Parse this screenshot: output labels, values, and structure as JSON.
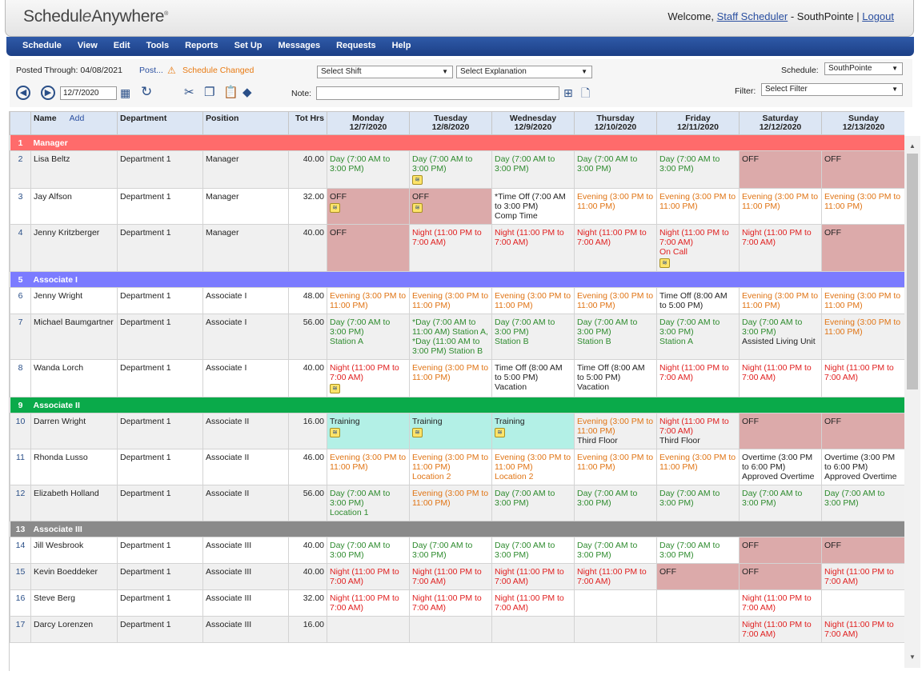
{
  "header": {
    "logo_pre": "Schedul",
    "logo_e": "e",
    "logo_post": "Anywhere",
    "logo_mark": "®",
    "welcome_text": "Welcome,",
    "user_name": "Staff Scheduler",
    "location_text": "- SouthPointe |",
    "logout": "Logout"
  },
  "menu": [
    "Schedule",
    "View",
    "Edit",
    "Tools",
    "Reports",
    "Set Up",
    "Messages",
    "Requests",
    "Help"
  ],
  "toolbar": {
    "posted_through": "Posted Through: 04/08/2021",
    "post_link": "Post...",
    "schedule_changed": "Schedule Changed",
    "select_shift": "Select Shift",
    "select_explanation": "Select Explanation",
    "schedule_label": "Schedule:",
    "schedule_value": "SouthPointe",
    "filter_label": "Filter:",
    "filter_value": "Select Filter",
    "date_value": "12/7/2020",
    "note_label": "Note:",
    "note_value": ""
  },
  "columns": {
    "name": "Name",
    "add": "Add",
    "department": "Department",
    "position": "Position",
    "tot_hrs": "Tot Hrs",
    "days": [
      {
        "day": "Monday",
        "date": "12/7/2020"
      },
      {
        "day": "Tuesday",
        "date": "12/8/2020"
      },
      {
        "day": "Wednesday",
        "date": "12/9/2020"
      },
      {
        "day": "Thursday",
        "date": "12/10/2020"
      },
      {
        "day": "Friday",
        "date": "12/11/2020"
      },
      {
        "day": "Saturday",
        "date": "12/12/2020"
      },
      {
        "day": "Sunday",
        "date": "12/13/2020"
      }
    ]
  },
  "rows": [
    {
      "type": "group",
      "num": "1",
      "label": "Manager",
      "color": "#ff6b6b"
    },
    {
      "type": "emp",
      "num": "2",
      "name": "Lisa Beltz",
      "dept": "Department 1",
      "pos": "Manager",
      "hrs": "40.00",
      "alt": true,
      "cells": [
        {
          "t": "Day (7:00 AM to 3:00 PM)",
          "k": "day"
        },
        {
          "t": "Day (7:00 AM to 3:00 PM)",
          "k": "day",
          "note": true
        },
        {
          "t": "Day (7:00 AM to 3:00 PM)",
          "k": "day"
        },
        {
          "t": "Day (7:00 AM to 3:00 PM)",
          "k": "day"
        },
        {
          "t": "Day (7:00 AM to 3:00 PM)",
          "k": "day"
        },
        {
          "t": "OFF",
          "k": "offbg"
        },
        {
          "t": "OFF",
          "k": "offbg"
        }
      ]
    },
    {
      "type": "emp",
      "num": "3",
      "name": "Jay Alfson",
      "dept": "Department 1",
      "pos": "Manager",
      "hrs": "32.00",
      "alt": false,
      "cells": [
        {
          "t": "OFF",
          "k": "offbg",
          "note": true
        },
        {
          "t": "OFF",
          "k": "offbg",
          "note": true
        },
        {
          "t": "*Time Off (7:00 AM to 3:00 PM)",
          "k": "plain",
          "extra": "Comp Time"
        },
        {
          "t": "Evening (3:00 PM to 11:00 PM)",
          "k": "eve"
        },
        {
          "t": "Evening (3:00 PM to 11:00 PM)",
          "k": "eve"
        },
        {
          "t": "Evening (3:00 PM to 11:00 PM)",
          "k": "eve"
        },
        {
          "t": "Evening (3:00 PM to 11:00 PM)",
          "k": "eve"
        }
      ]
    },
    {
      "type": "emp",
      "num": "4",
      "name": "Jenny Kritzberger",
      "dept": "Department 1",
      "pos": "Manager",
      "hrs": "40.00",
      "alt": true,
      "cells": [
        {
          "t": "OFF",
          "k": "offbg"
        },
        {
          "t": "Night (11:00 PM to 7:00 AM)",
          "k": "night"
        },
        {
          "t": "Night (11:00 PM to 7:00 AM)",
          "k": "night"
        },
        {
          "t": "Night (11:00 PM to 7:00 AM)",
          "k": "night"
        },
        {
          "t": "Night (11:00 PM to 7:00 AM)",
          "k": "night",
          "extra": "On Call",
          "note": true
        },
        {
          "t": "Night (11:00 PM to 7:00 AM)",
          "k": "night"
        },
        {
          "t": "OFF",
          "k": "offbg"
        }
      ]
    },
    {
      "type": "group",
      "num": "5",
      "label": "Associate I",
      "color": "#7b7bff"
    },
    {
      "type": "emp",
      "num": "6",
      "name": "Jenny Wright",
      "dept": "Department 1",
      "pos": "Associate I",
      "hrs": "48.00",
      "alt": false,
      "cells": [
        {
          "t": "Evening (3:00 PM to 11:00 PM)",
          "k": "eve"
        },
        {
          "t": "Evening (3:00 PM to 11:00 PM)",
          "k": "eve"
        },
        {
          "t": "Evening (3:00 PM to 11:00 PM)",
          "k": "eve"
        },
        {
          "t": "Evening (3:00 PM to 11:00 PM)",
          "k": "eve"
        },
        {
          "t": "Time Off (8:00 AM to 5:00 PM)",
          "k": "plain"
        },
        {
          "t": "Evening (3:00 PM to 11:00 PM)",
          "k": "eve"
        },
        {
          "t": "Evening (3:00 PM to 11:00 PM)",
          "k": "eve"
        }
      ]
    },
    {
      "type": "emp",
      "num": "7",
      "name": "Michael Baumgartner",
      "dept": "Department 1",
      "pos": "Associate I",
      "hrs": "56.00",
      "alt": true,
      "cells": [
        {
          "t": "Day (7:00 AM to 3:00 PM)",
          "k": "day",
          "extra": "Station A"
        },
        {
          "t": "*Day (7:00 AM to 11:00 AM) Station A, *Day (11:00 AM to 3:00 PM) Station B",
          "k": "day"
        },
        {
          "t": "Day (7:00 AM to 3:00 PM)",
          "k": "day",
          "extra": "Station B"
        },
        {
          "t": "Day (7:00 AM to 3:00 PM)",
          "k": "day",
          "extra": "Station B"
        },
        {
          "t": "Day (7:00 AM to 3:00 PM)",
          "k": "day",
          "extra": "Station A"
        },
        {
          "t": "Day (7:00 AM to 3:00 PM)",
          "k": "day",
          "extra": "Assisted Living Unit",
          "extra_plain": true
        },
        {
          "t": "Evening (3:00 PM to 11:00 PM)",
          "k": "eve"
        }
      ]
    },
    {
      "type": "emp",
      "num": "8",
      "name": "Wanda Lorch",
      "dept": "Department 1",
      "pos": "Associate I",
      "hrs": "40.00",
      "alt": false,
      "cells": [
        {
          "t": "Night (11:00 PM to 7:00 AM)",
          "k": "night",
          "note": true
        },
        {
          "t": "Evening (3:00 PM to 11:00 PM)",
          "k": "eve"
        },
        {
          "t": "Time Off (8:00 AM to 5:00 PM)",
          "k": "plain",
          "extra": "Vacation"
        },
        {
          "t": "Time Off (8:00 AM to 5:00 PM)",
          "k": "plain",
          "extra": "Vacation"
        },
        {
          "t": "Night (11:00 PM to 7:00 AM)",
          "k": "night"
        },
        {
          "t": "Night (11:00 PM to 7:00 AM)",
          "k": "night"
        },
        {
          "t": "Night (11:00 PM to 7:00 AM)",
          "k": "night"
        }
      ]
    },
    {
      "type": "group",
      "num": "9",
      "label": "Associate II",
      "color": "#0aaa4a"
    },
    {
      "type": "emp",
      "num": "10",
      "name": "Darren Wright",
      "dept": "Department 1",
      "pos": "Associate II",
      "hrs": "16.00",
      "alt": true,
      "cells": [
        {
          "t": "Training",
          "k": "train",
          "note": true
        },
        {
          "t": "Training",
          "k": "train",
          "note": true
        },
        {
          "t": "Training",
          "k": "train",
          "note": true
        },
        {
          "t": "Evening (3:00 PM to 11:00 PM)",
          "k": "eve",
          "extra": "Third Floor",
          "extra_plain": true
        },
        {
          "t": "Night (11:00 PM to 7:00 AM)",
          "k": "night",
          "extra": "Third Floor",
          "extra_plain": true
        },
        {
          "t": "OFF",
          "k": "offbg"
        },
        {
          "t": "OFF",
          "k": "offbg"
        }
      ]
    },
    {
      "type": "emp",
      "num": "11",
      "name": "Rhonda Lusso",
      "dept": "Department 1",
      "pos": "Associate II",
      "hrs": "46.00",
      "alt": false,
      "cells": [
        {
          "t": "Evening (3:00 PM to 11:00 PM)",
          "k": "eve"
        },
        {
          "t": "Evening (3:00 PM to 11:00 PM)",
          "k": "eve",
          "extra": "Location 2"
        },
        {
          "t": "Evening (3:00 PM to 11:00 PM)",
          "k": "eve",
          "extra": "Location 2"
        },
        {
          "t": "Evening (3:00 PM to 11:00 PM)",
          "k": "eve"
        },
        {
          "t": "Evening (3:00 PM to 11:00 PM)",
          "k": "eve"
        },
        {
          "t": "Overtime (3:00 PM to 6:00 PM)",
          "k": "plain",
          "extra": "Approved Overtime"
        },
        {
          "t": "Overtime (3:00 PM to 6:00 PM)",
          "k": "plain",
          "extra": "Approved Overtime"
        }
      ]
    },
    {
      "type": "emp",
      "num": "12",
      "name": "Elizabeth Holland",
      "dept": "Department 1",
      "pos": "Associate II",
      "hrs": "56.00",
      "alt": true,
      "cells": [
        {
          "t": "Day (7:00 AM to 3:00 PM)",
          "k": "day",
          "extra": "Location 1"
        },
        {
          "t": "Evening (3:00 PM to 11:00 PM)",
          "k": "eve"
        },
        {
          "t": "Day (7:00 AM to 3:00 PM)",
          "k": "day"
        },
        {
          "t": "Day (7:00 AM to 3:00 PM)",
          "k": "day"
        },
        {
          "t": "Day (7:00 AM to 3:00 PM)",
          "k": "day"
        },
        {
          "t": "Day (7:00 AM to 3:00 PM)",
          "k": "day"
        },
        {
          "t": "Day (7:00 AM to 3:00 PM)",
          "k": "day"
        }
      ]
    },
    {
      "type": "group",
      "num": "13",
      "label": "Associate III",
      "color": "#8a8a8a"
    },
    {
      "type": "emp",
      "num": "14",
      "name": "Jill Wesbrook",
      "dept": "Department 1",
      "pos": "Associate III",
      "hrs": "40.00",
      "alt": false,
      "cells": [
        {
          "t": "Day (7:00 AM to 3:00 PM)",
          "k": "day"
        },
        {
          "t": "Day (7:00 AM to 3:00 PM)",
          "k": "day"
        },
        {
          "t": "Day (7:00 AM to 3:00 PM)",
          "k": "day"
        },
        {
          "t": "Day (7:00 AM to 3:00 PM)",
          "k": "day"
        },
        {
          "t": "Day (7:00 AM to 3:00 PM)",
          "k": "day"
        },
        {
          "t": "OFF",
          "k": "offbg"
        },
        {
          "t": "OFF",
          "k": "offbg"
        }
      ]
    },
    {
      "type": "emp",
      "num": "15",
      "name": "Kevin Boeddeker",
      "dept": "Department 1",
      "pos": "Associate III",
      "hrs": "40.00",
      "alt": true,
      "cells": [
        {
          "t": "Night (11:00 PM to 7:00 AM)",
          "k": "night"
        },
        {
          "t": "Night (11:00 PM to 7:00 AM)",
          "k": "night"
        },
        {
          "t": "Night (11:00 PM to 7:00 AM)",
          "k": "night"
        },
        {
          "t": "Night (11:00 PM to 7:00 AM)",
          "k": "night"
        },
        {
          "t": "OFF",
          "k": "offbg"
        },
        {
          "t": "OFF",
          "k": "offbg"
        },
        {
          "t": "Night (11:00 PM to 7:00 AM)",
          "k": "night"
        }
      ]
    },
    {
      "type": "emp",
      "num": "16",
      "name": "Steve Berg",
      "dept": "Department 1",
      "pos": "Associate III",
      "hrs": "32.00",
      "alt": false,
      "cells": [
        {
          "t": "Night (11:00 PM to 7:00 AM)",
          "k": "night"
        },
        {
          "t": "Night (11:00 PM to 7:00 AM)",
          "k": "night"
        },
        {
          "t": "Night (11:00 PM to 7:00 AM)",
          "k": "night"
        },
        {
          "t": "",
          "k": "plain"
        },
        {
          "t": "",
          "k": "plain"
        },
        {
          "t": "Night (11:00 PM to 7:00 AM)",
          "k": "night"
        },
        {
          "t": "",
          "k": "plain"
        }
      ]
    },
    {
      "type": "emp",
      "num": "17",
      "name": "Darcy Lorenzen",
      "dept": "Department 1",
      "pos": "Associate III",
      "hrs": "16.00",
      "alt": true,
      "cells": [
        {
          "t": "",
          "k": "plain"
        },
        {
          "t": "",
          "k": "plain"
        },
        {
          "t": "",
          "k": "plain"
        },
        {
          "t": "",
          "k": "plain"
        },
        {
          "t": "",
          "k": "plain"
        },
        {
          "t": "Night (11:00 PM to 7:00 AM)",
          "k": "night"
        },
        {
          "t": "Night (11:00 PM to 7:00 AM)",
          "k": "night"
        }
      ]
    }
  ]
}
